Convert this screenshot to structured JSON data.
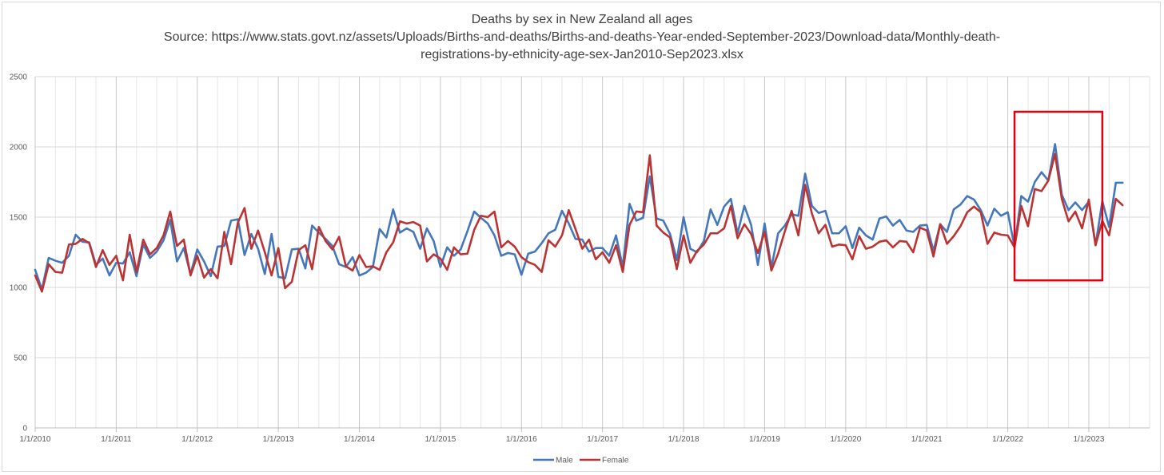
{
  "chart_data": {
    "type": "line",
    "title": "Deaths by sex in New Zealand all ages",
    "subtitle_lines": [
      "Source: https://www.stats.govt.nz/assets/Uploads/Births-and-deaths/Births-and-deaths-Year-ended-September-2023/Download-data/Monthly-death-",
      "registrations-by-ethnicity-age-sex-Jan2010-Sep2023.xlsx"
    ],
    "xlabel": "",
    "ylabel": "",
    "ylim": [
      0,
      2500
    ],
    "yticks": [
      0,
      500,
      1000,
      1500,
      2000,
      2500
    ],
    "xlim_months": [
      0,
      165
    ],
    "xticks": [
      {
        "month": 0,
        "label": "1/1/2010"
      },
      {
        "month": 12,
        "label": "1/1/2011"
      },
      {
        "month": 24,
        "label": "1/1/2012"
      },
      {
        "month": 36,
        "label": "1/1/2013"
      },
      {
        "month": 48,
        "label": "1/1/2014"
      },
      {
        "month": 60,
        "label": "1/1/2015"
      },
      {
        "month": 72,
        "label": "1/1/2016"
      },
      {
        "month": 84,
        "label": "1/1/2017"
      },
      {
        "month": 96,
        "label": "1/1/2018"
      },
      {
        "month": 108,
        "label": "1/1/2019"
      },
      {
        "month": 120,
        "label": "1/1/2020"
      },
      {
        "month": 132,
        "label": "1/1/2021"
      },
      {
        "month": 144,
        "label": "1/1/2022"
      },
      {
        "month": 156,
        "label": "1/1/2023"
      }
    ],
    "grid": true,
    "legend": "bottom",
    "highlight": {
      "from_month": 145,
      "to_month": 158,
      "y_from": 1050,
      "y_to": 2250,
      "color": "#e3000f"
    },
    "series": [
      {
        "name": "Male",
        "color": "#4477bb",
        "start_month": 0,
        "values": [
          1125,
          985,
          1210,
          1190,
          1175,
          1225,
          1375,
          1325,
          1320,
          1160,
          1205,
          1085,
          1175,
          1170,
          1250,
          1080,
          1305,
          1210,
          1255,
          1335,
          1480,
          1185,
          1280,
          1095,
          1270,
          1185,
          1080,
          1290,
          1295,
          1475,
          1485,
          1230,
          1380,
          1275,
          1095,
          1380,
          1075,
          1065,
          1270,
          1275,
          1135,
          1440,
          1390,
          1345,
          1295,
          1165,
          1145,
          1215,
          1085,
          1105,
          1145,
          1415,
          1355,
          1555,
          1390,
          1420,
          1395,
          1275,
          1420,
          1330,
          1145,
          1285,
          1225,
          1270,
          1400,
          1540,
          1495,
          1455,
          1370,
          1225,
          1245,
          1235,
          1090,
          1240,
          1255,
          1315,
          1385,
          1410,
          1545,
          1455,
          1345,
          1340,
          1255,
          1280,
          1280,
          1225,
          1370,
          1145,
          1595,
          1475,
          1495,
          1790,
          1490,
          1475,
          1380,
          1195,
          1500,
          1275,
          1250,
          1330,
          1555,
          1445,
          1575,
          1630,
          1385,
          1580,
          1445,
          1160,
          1455,
          1140,
          1385,
          1440,
          1520,
          1510,
          1810,
          1580,
          1530,
          1545,
          1385,
          1385,
          1435,
          1280,
          1425,
          1370,
          1340,
          1490,
          1505,
          1440,
          1480,
          1405,
          1395,
          1440,
          1445,
          1260,
          1450,
          1395,
          1555,
          1590,
          1650,
          1625,
          1550,
          1440,
          1560,
          1510,
          1535,
          1290,
          1650,
          1610,
          1750,
          1820,
          1760,
          2020,
          1660,
          1550,
          1605,
          1550,
          1610,
          1300,
          1615,
          1430,
          1745,
          1745
        ]
      },
      {
        "name": "Female",
        "color": "#bb3333",
        "start_month": 0,
        "values": [
          1085,
          970,
          1165,
          1110,
          1105,
          1305,
          1310,
          1345,
          1315,
          1145,
          1265,
          1160,
          1225,
          1050,
          1375,
          1110,
          1340,
          1235,
          1280,
          1370,
          1540,
          1295,
          1340,
          1085,
          1225,
          1070,
          1130,
          1065,
          1395,
          1165,
          1460,
          1565,
          1275,
          1405,
          1250,
          1085,
          1280,
          995,
          1040,
          1265,
          1300,
          1130,
          1430,
          1330,
          1270,
          1360,
          1150,
          1120,
          1230,
          1145,
          1150,
          1125,
          1250,
          1320,
          1470,
          1455,
          1465,
          1440,
          1185,
          1235,
          1205,
          1125,
          1285,
          1235,
          1240,
          1410,
          1510,
          1500,
          1540,
          1285,
          1330,
          1290,
          1215,
          1180,
          1160,
          1110,
          1335,
          1290,
          1370,
          1550,
          1415,
          1275,
          1340,
          1200,
          1250,
          1175,
          1300,
          1110,
          1445,
          1540,
          1535,
          1940,
          1440,
          1390,
          1355,
          1130,
          1370,
          1175,
          1260,
          1305,
          1385,
          1385,
          1420,
          1580,
          1350,
          1450,
          1380,
          1245,
          1395,
          1120,
          1240,
          1400,
          1545,
          1370,
          1730,
          1525,
          1385,
          1445,
          1290,
          1305,
          1300,
          1200,
          1365,
          1275,
          1290,
          1325,
          1335,
          1285,
          1330,
          1325,
          1250,
          1425,
          1405,
          1220,
          1450,
          1310,
          1365,
          1435,
          1535,
          1575,
          1535,
          1310,
          1390,
          1375,
          1370,
          1285,
          1580,
          1435,
          1700,
          1685,
          1760,
          1950,
          1630,
          1470,
          1540,
          1420,
          1625,
          1300,
          1475,
          1370,
          1630,
          1585
        ]
      }
    ]
  }
}
